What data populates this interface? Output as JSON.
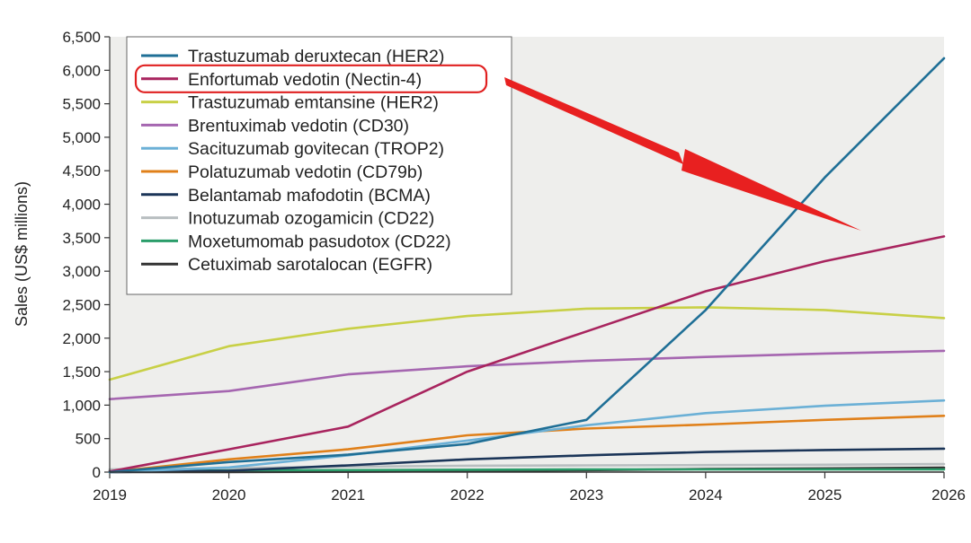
{
  "chart_data": {
    "type": "line",
    "title": "",
    "xlabel": "",
    "ylabel": "Sales (US$ millions)",
    "x": [
      2019,
      2020,
      2021,
      2022,
      2023,
      2024,
      2025,
      2026
    ],
    "x_tick_labels": [
      "2019",
      "2020",
      "2021",
      "2022",
      "2023",
      "2024",
      "2025",
      "2026"
    ],
    "ylim": [
      0,
      6500
    ],
    "y_ticks": [
      0,
      500,
      1000,
      1500,
      2000,
      2500,
      3000,
      3500,
      4000,
      4500,
      5000,
      5500,
      6000,
      6500
    ],
    "y_tick_labels": [
      "0",
      "500",
      "1,000",
      "1,500",
      "2,000",
      "2,500",
      "3,000",
      "3,500",
      "4,000",
      "4,500",
      "5,000",
      "5,500",
      "6,000",
      "6,500"
    ],
    "grid": false,
    "legend_position": "top-left",
    "series": [
      {
        "name": "Trastuzumab deruxtecan (HER2)",
        "color": "#1f6f96",
        "x": [
          2019,
          2020,
          2021,
          2022,
          2023,
          2024,
          2025,
          2026
        ],
        "values": [
          0,
          150,
          260,
          420,
          780,
          2420,
          4400,
          6180
        ]
      },
      {
        "name": "Enfortumab vedotin (Nectin-4)",
        "color": "#a8245e",
        "x": [
          2019,
          2020,
          2021,
          2022,
          2023,
          2024,
          2025,
          2026
        ],
        "values": [
          10,
          340,
          680,
          1500,
          2100,
          2700,
          3150,
          3520
        ]
      },
      {
        "name": "Trastuzumab emtansine (HER2)",
        "color": "#c8d046",
        "x": [
          2019,
          2020,
          2021,
          2022,
          2023,
          2024,
          2025,
          2026
        ],
        "values": [
          1380,
          1880,
          2140,
          2330,
          2440,
          2460,
          2420,
          2300
        ]
      },
      {
        "name": "Brentuximab vedotin (CD30)",
        "color": "#a566b0",
        "x": [
          2019,
          2020,
          2021,
          2022,
          2023,
          2024,
          2025,
          2026
        ],
        "values": [
          1090,
          1210,
          1460,
          1580,
          1660,
          1720,
          1770,
          1810
        ]
      },
      {
        "name": "Sacituzumab govitecan (TROP2)",
        "color": "#6bb0d6",
        "x": [
          2019,
          2020,
          2021,
          2022,
          2023,
          2024,
          2025,
          2026
        ],
        "values": [
          0,
          70,
          250,
          470,
          700,
          880,
          990,
          1070
        ]
      },
      {
        "name": "Polatuzumab vedotin (CD79b)",
        "color": "#e0801a",
        "x": [
          2019,
          2020,
          2021,
          2022,
          2023,
          2024,
          2025,
          2026
        ],
        "values": [
          0,
          190,
          340,
          550,
          650,
          710,
          780,
          840
        ]
      },
      {
        "name": "Belantamab mafodotin (BCMA)",
        "color": "#1b3558",
        "x": [
          2019,
          2020,
          2021,
          2022,
          2023,
          2024,
          2025,
          2026
        ],
        "values": [
          0,
          20,
          100,
          190,
          250,
          300,
          330,
          350
        ]
      },
      {
        "name": "Inotuzumab ozogamicin (CD22)",
        "color": "#b8bec0",
        "x": [
          2019,
          2020,
          2021,
          2022,
          2023,
          2024,
          2025,
          2026
        ],
        "values": [
          40,
          60,
          80,
          95,
          100,
          105,
          110,
          120
        ]
      },
      {
        "name": "Moxetumomab pasudotox (CD22)",
        "color": "#2a9d6a",
        "x": [
          2019,
          2020,
          2021,
          2022,
          2023,
          2024,
          2025,
          2026
        ],
        "values": [
          20,
          25,
          30,
          35,
          40,
          40,
          40,
          40
        ]
      },
      {
        "name": "Cetuximab sarotalocan (EGFR)",
        "color": "#333333",
        "x": [
          2019,
          2020,
          2021,
          2022,
          2023,
          2024,
          2025,
          2026
        ],
        "values": [
          0,
          0,
          5,
          15,
          30,
          45,
          55,
          65
        ]
      }
    ],
    "annotations": {
      "highlight_legend_entry": "Enfortumab vedotin (Nectin-4)",
      "highlight_color": "#e02020",
      "arrow_color": "#e82020"
    }
  }
}
